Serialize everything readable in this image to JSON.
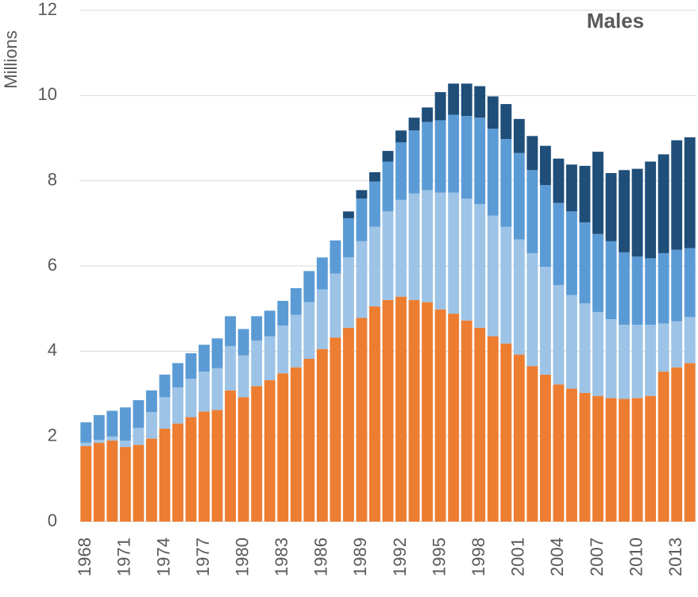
{
  "chart_data": {
    "type": "stacked_bar",
    "title": "Males",
    "y_label": "Millions",
    "categories": [
      "1968",
      null,
      null,
      "1971",
      null,
      null,
      "1974",
      null,
      null,
      "1977",
      null,
      null,
      "1980",
      null,
      null,
      "1983",
      null,
      null,
      "1986",
      null,
      null,
      "1989",
      null,
      null,
      "1992",
      null,
      null,
      "1995",
      null,
      null,
      "1998",
      null,
      null,
      "2001",
      null,
      null,
      "2004",
      null,
      null,
      "2007",
      null,
      null,
      "2010",
      null,
      null,
      "2013",
      null
    ],
    "series": [
      {
        "color": "#ed7d31",
        "values": [
          1.77,
          1.85,
          1.9,
          1.75,
          1.8,
          1.95,
          2.18,
          2.3,
          2.45,
          2.58,
          2.62,
          3.08,
          2.92,
          3.18,
          3.32,
          3.48,
          3.62,
          3.82,
          4.05,
          4.32,
          4.55,
          4.78,
          5.05,
          5.2,
          5.28,
          5.2,
          5.15,
          4.98,
          4.88,
          4.72,
          4.55,
          4.35,
          4.18,
          3.92,
          3.65,
          3.45,
          3.22,
          3.12,
          3.02,
          2.95,
          2.9,
          2.88,
          2.9,
          2.95,
          3.52,
          3.62,
          3.72
        ]
      },
      {
        "color": "#9dc3e6",
        "values": [
          0.08,
          0.07,
          0.1,
          0.15,
          0.4,
          0.62,
          0.74,
          0.85,
          0.9,
          0.94,
          0.98,
          1.04,
          0.98,
          1.07,
          1.03,
          1.12,
          1.23,
          1.33,
          1.4,
          1.5,
          1.65,
          1.8,
          1.87,
          2.08,
          2.27,
          2.5,
          2.63,
          2.74,
          2.84,
          2.86,
          2.9,
          2.83,
          2.74,
          2.7,
          2.65,
          2.53,
          2.33,
          2.2,
          2.1,
          1.97,
          1.85,
          1.74,
          1.72,
          1.67,
          1.13,
          1.08,
          1.08
        ]
      },
      {
        "color": "#5b9bd5",
        "values": [
          0.48,
          0.58,
          0.6,
          0.78,
          0.65,
          0.51,
          0.53,
          0.57,
          0.6,
          0.63,
          0.7,
          0.7,
          0.62,
          0.57,
          0.6,
          0.58,
          0.63,
          0.73,
          0.75,
          0.78,
          0.92,
          1.0,
          1.06,
          1.17,
          1.35,
          1.48,
          1.6,
          1.7,
          1.83,
          1.94,
          2.03,
          2.04,
          2.06,
          2.03,
          1.95,
          1.92,
          1.93,
          1.96,
          1.9,
          1.83,
          1.83,
          1.7,
          1.6,
          1.56,
          1.65,
          1.68,
          1.62
        ]
      },
      {
        "color": "#1f4e79",
        "values": [
          0,
          0,
          0,
          0,
          0,
          0,
          0,
          0,
          0,
          0,
          0,
          0,
          0,
          0,
          0,
          0,
          0,
          0,
          0,
          0,
          0.16,
          0.2,
          0.22,
          0.25,
          0.28,
          0.3,
          0.34,
          0.66,
          0.73,
          0.76,
          0.74,
          0.76,
          0.82,
          0.8,
          0.8,
          0.92,
          1.04,
          1.1,
          1.33,
          1.93,
          1.6,
          1.93,
          2.06,
          2.27,
          2.32,
          2.57,
          2.6
        ]
      }
    ],
    "ylim": [
      0,
      12
    ],
    "yticks": [
      0,
      2,
      4,
      6,
      8,
      10,
      12
    ],
    "grid": true
  }
}
